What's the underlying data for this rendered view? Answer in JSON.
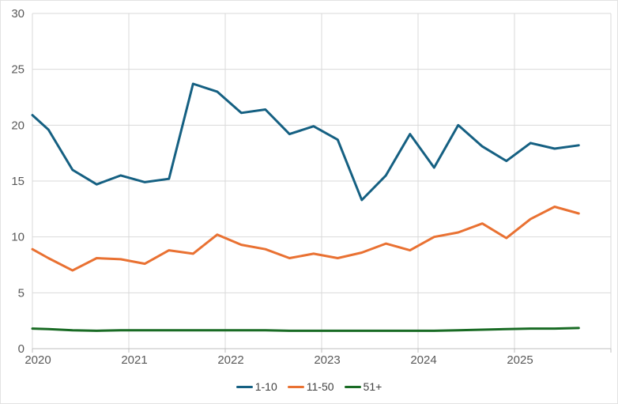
{
  "chart": {
    "background": "#FFFFFF",
    "grid_color": "#D9D9D9",
    "axis_line_color": "#BFBFBF",
    "tick_label_color": "#595959",
    "legend_text_color": "#404040"
  },
  "chart_data": {
    "type": "line",
    "title": "",
    "xlabel": "",
    "ylabel": "",
    "grid": true,
    "legend_position": "bottom",
    "x_point_dates": [
      "Jan 2020",
      "Mar 2020",
      "Jun 2020",
      "Sep 2020",
      "Dec 2020",
      "Mar 2021",
      "Jun 2021",
      "Sep 2021",
      "Dec 2021",
      "Mar 2022",
      "Jun 2022",
      "Sep 2022",
      "Dec 2022",
      "Mar 2023",
      "Jun 2023",
      "Sep 2023",
      "Dec 2023",
      "Mar 2024",
      "Jun 2024",
      "Sep 2024",
      "Dec 2024",
      "Mar 2025",
      "Jun 2025",
      "Sep 2025"
    ],
    "x_months_from_2020": [
      0,
      2,
      5,
      8,
      11,
      14,
      17,
      20,
      23,
      26,
      29,
      32,
      35,
      38,
      41,
      44,
      47,
      50,
      53,
      56,
      59,
      62,
      65,
      68
    ],
    "x_axis": {
      "tick_labels": [
        "2020",
        "2021",
        "2022",
        "2023",
        "2024",
        "2025"
      ],
      "gridline_count": 7,
      "range_months": [
        0,
        72
      ]
    },
    "y_axis": {
      "ticks": [
        0,
        5,
        10,
        15,
        20,
        25,
        30
      ],
      "range": [
        0,
        30
      ]
    },
    "series": [
      {
        "name": "1-10",
        "color": "#156082",
        "values": [
          20.9,
          19.6,
          16.0,
          14.7,
          15.5,
          14.9,
          15.2,
          23.7,
          23.0,
          21.1,
          21.4,
          19.2,
          19.9,
          18.7,
          13.3,
          15.5,
          19.2,
          16.2,
          20.0,
          18.1,
          16.8,
          18.4,
          17.9,
          18.2
        ]
      },
      {
        "name": "11-50",
        "color": "#E97132",
        "values": [
          8.9,
          8.1,
          7.0,
          8.1,
          8.0,
          7.6,
          8.8,
          8.5,
          10.2,
          9.3,
          8.9,
          8.1,
          8.5,
          8.1,
          8.6,
          9.4,
          8.8,
          10.0,
          10.4,
          11.2,
          9.9,
          11.6,
          12.7,
          12.1
        ]
      },
      {
        "name": "51+",
        "color": "#196B24",
        "values": [
          1.8,
          1.75,
          1.65,
          1.6,
          1.65,
          1.65,
          1.65,
          1.65,
          1.65,
          1.65,
          1.65,
          1.6,
          1.6,
          1.6,
          1.6,
          1.6,
          1.6,
          1.6,
          1.65,
          1.7,
          1.75,
          1.8,
          1.8,
          1.85
        ]
      }
    ]
  }
}
